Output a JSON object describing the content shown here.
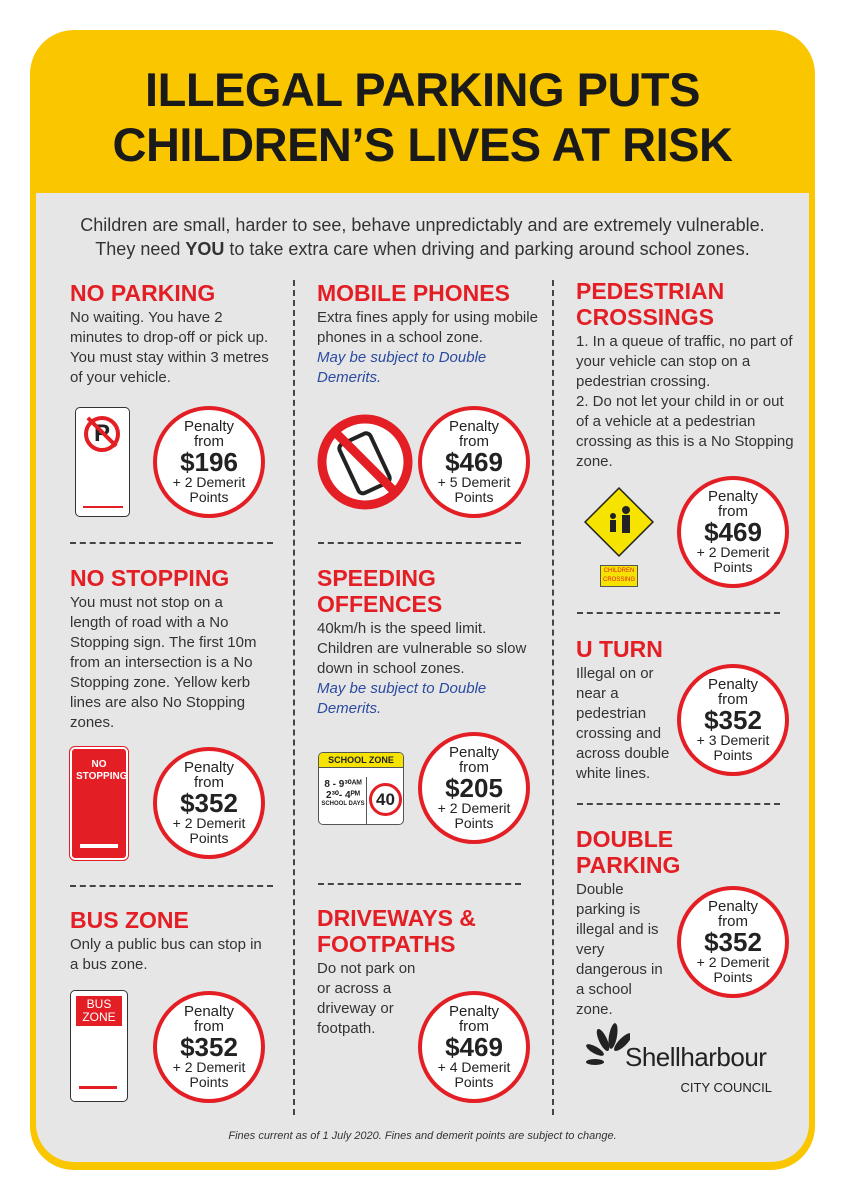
{
  "title": {
    "line1": "ILLEGAL PARKING PUTS",
    "line2": "CHILDREN’S LIVES AT RISK"
  },
  "intro": {
    "line1": "Children are small, harder to see, behave unpredictably and are extremely vulnerable.",
    "line2_pre": "They need ",
    "line2_bold": "YOU",
    "line2_post": " to take extra care when driving and parking around school zones."
  },
  "sections": [
    {
      "heading": "NO PARKING",
      "body": "No waiting. You have 2 minutes to drop-off or pick up. You must stay within 3 metres of your vehicle.",
      "penalty": {
        "label": "Penalty",
        "from": "from",
        "amount": "$196",
        "points": "+ 2 Demerit",
        "points2": "Points"
      }
    },
    {
      "heading": "NO STOPPING",
      "body": "You must not stop on a length of road with a No Stopping sign. The first 10m from an intersection is a No Stopping zone. Yellow kerb lines are also No Stopping zones.",
      "sign_text": "NO STOPPING",
      "penalty": {
        "label": "Penalty",
        "from": "from",
        "amount": "$352",
        "points": "+ 2 Demerit",
        "points2": "Points"
      }
    },
    {
      "heading": "BUS ZONE",
      "body": "Only a public bus can stop in a bus zone.",
      "sign_text": "BUS ZONE",
      "penalty": {
        "label": "Penalty",
        "from": "from",
        "amount": "$352",
        "points": "+ 2 Demerit",
        "points2": "Points"
      }
    },
    {
      "heading": "MOBILE PHONES",
      "body": "Extra fines apply for using mobile phones in a school zone.",
      "note": "May be subject to Double Demerits.",
      "penalty": {
        "label": "Penalty",
        "from": "from",
        "amount": "$469",
        "points": "+ 5 Demerit",
        "points2": "Points"
      }
    },
    {
      "heading": "SPEEDING OFFENCES",
      "body": "40km/h is the speed limit. Children are vulnerable so slow down in school zones.",
      "note": "May be subject to Double Demerits.",
      "sign": {
        "top": "SCHOOL ZONE",
        "t1": "8 - 9³⁰ᴬᴹ",
        "t2": "2³⁰- 4ᴾᴹ",
        "days": "SCHOOL DAYS",
        "limit": "40"
      },
      "penalty": {
        "label": "Penalty",
        "from": "from",
        "amount": "$205",
        "points": "+ 2 Demerit",
        "points2": "Points"
      }
    },
    {
      "heading": "DRIVEWAYS & FOOTPATHS",
      "body": "Do not park on or across a driveway or footpath.",
      "penalty": {
        "label": "Penalty",
        "from": "from",
        "amount": "$469",
        "points": "+ 4 Demerit",
        "points2": "Points"
      }
    },
    {
      "heading": "PEDESTRIAN CROSSINGS",
      "body": "1. In a queue of traffic, no part of your vehicle can stop on a pedestrian crossing.",
      "body2": "2. Do not let your child in or out of a vehicle at a pedestrian crossing as this is a No Stopping zone.",
      "sign_text": "CHILDREN CROSSING",
      "penalty": {
        "label": "Penalty",
        "from": "from",
        "amount": "$469",
        "points": "+ 2 Demerit",
        "points2": "Points"
      }
    },
    {
      "heading": "U TURN",
      "body": "Illegal on or near a pedestrian crossing and across double white lines.",
      "penalty": {
        "label": "Penalty",
        "from": "from",
        "amount": "$352",
        "points": "+ 3 Demerit",
        "points2": "Points"
      }
    },
    {
      "heading": "DOUBLE PARKING",
      "body": "Double parking is illegal and is very dangerous in a school zone.",
      "penalty": {
        "label": "Penalty",
        "from": "from",
        "amount": "$352",
        "points": "+ 2 Demerit",
        "points2": "Points"
      }
    }
  ],
  "logo": {
    "name": "Shellharbour",
    "sub": "CITY COUNCIL"
  },
  "footer": "Fines current as of 1 July 2020. Fines and demerit points are subject to change.",
  "colors": {
    "yellow": "#f9c600",
    "red": "#e31e24",
    "grey": "#e6e6e6",
    "blue": "#2b4ba0"
  }
}
